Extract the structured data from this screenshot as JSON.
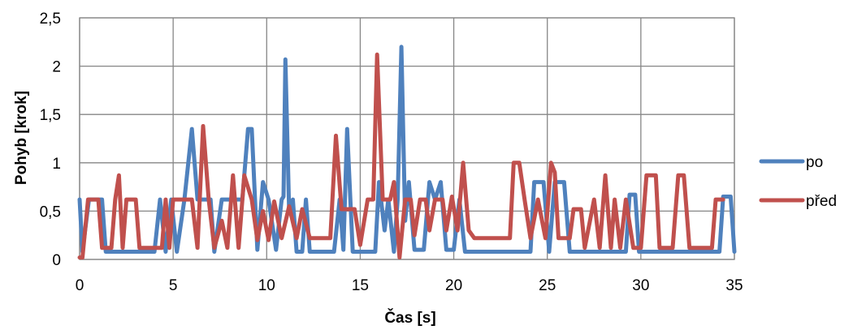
{
  "chart_data": {
    "type": "line",
    "xlabel": "Čas [s]",
    "ylabel": "Pohyb [krok]",
    "xlim": [
      0,
      35
    ],
    "ylim": [
      0,
      2.5
    ],
    "x_ticks": [
      0,
      5,
      10,
      15,
      20,
      25,
      30,
      35
    ],
    "y_ticks": [
      0,
      0.5,
      1,
      1.5,
      2,
      2.5
    ],
    "x_tick_labels": [
      "0",
      "5",
      "10",
      "15",
      "20",
      "25",
      "30",
      "35"
    ],
    "y_tick_labels": [
      "0",
      "0,5",
      "1",
      "1,5",
      "2",
      "2,5"
    ],
    "grid": true,
    "legend_position": "right",
    "series": [
      {
        "name": "po",
        "color": "#4F81BD",
        "points": [
          [
            0,
            0.62
          ],
          [
            0.15,
            0.08
          ],
          [
            0.5,
            0.62
          ],
          [
            1.2,
            0.62
          ],
          [
            1.4,
            0.08
          ],
          [
            4.0,
            0.08
          ],
          [
            4.3,
            0.62
          ],
          [
            4.6,
            0.08
          ],
          [
            4.9,
            0.62
          ],
          [
            5.2,
            0.08
          ],
          [
            5.6,
            0.62
          ],
          [
            6.0,
            1.35
          ],
          [
            6.3,
            0.62
          ],
          [
            7.0,
            0.62
          ],
          [
            7.2,
            0.08
          ],
          [
            7.6,
            0.62
          ],
          [
            8.7,
            0.62
          ],
          [
            9.0,
            1.35
          ],
          [
            9.2,
            1.35
          ],
          [
            9.5,
            0.1
          ],
          [
            9.8,
            0.8
          ],
          [
            10.1,
            0.62
          ],
          [
            10.5,
            0.1
          ],
          [
            10.8,
            0.62
          ],
          [
            10.9,
            0.65
          ],
          [
            11.0,
            2.07
          ],
          [
            11.2,
            0.5
          ],
          [
            11.4,
            0.62
          ],
          [
            11.6,
            0.08
          ],
          [
            11.9,
            0.08
          ],
          [
            12.1,
            0.62
          ],
          [
            12.3,
            0.08
          ],
          [
            13.6,
            0.08
          ],
          [
            13.9,
            0.62
          ],
          [
            14.1,
            0.1
          ],
          [
            14.3,
            1.35
          ],
          [
            14.6,
            0.08
          ],
          [
            15.8,
            0.08
          ],
          [
            16.0,
            0.8
          ],
          [
            16.3,
            0.3
          ],
          [
            16.5,
            0.62
          ],
          [
            16.8,
            0.08
          ],
          [
            17.0,
            0.62
          ],
          [
            17.2,
            2.2
          ],
          [
            17.4,
            0.4
          ],
          [
            17.6,
            0.8
          ],
          [
            17.9,
            0.1
          ],
          [
            18.4,
            0.1
          ],
          [
            18.7,
            0.8
          ],
          [
            19.0,
            0.62
          ],
          [
            19.3,
            0.8
          ],
          [
            19.6,
            0.1
          ],
          [
            20.0,
            0.1
          ],
          [
            20.3,
            0.62
          ],
          [
            20.6,
            0.08
          ],
          [
            24.1,
            0.08
          ],
          [
            24.3,
            0.8
          ],
          [
            24.8,
            0.8
          ],
          [
            25.1,
            0.08
          ],
          [
            25.4,
            0.8
          ],
          [
            25.9,
            0.8
          ],
          [
            26.2,
            0.08
          ],
          [
            29.2,
            0.08
          ],
          [
            29.4,
            0.67
          ],
          [
            29.7,
            0.67
          ],
          [
            29.9,
            0.08
          ],
          [
            34.2,
            0.08
          ],
          [
            34.4,
            0.65
          ],
          [
            34.8,
            0.65
          ],
          [
            35.0,
            0.08
          ]
        ]
      },
      {
        "name": "před",
        "color": "#C0504D",
        "points": [
          [
            0,
            0.02
          ],
          [
            0.15,
            0.02
          ],
          [
            0.45,
            0.62
          ],
          [
            1.0,
            0.62
          ],
          [
            1.2,
            0.12
          ],
          [
            1.7,
            0.12
          ],
          [
            1.9,
            0.62
          ],
          [
            2.1,
            0.87
          ],
          [
            2.3,
            0.12
          ],
          [
            2.5,
            0.62
          ],
          [
            3.0,
            0.62
          ],
          [
            3.2,
            0.12
          ],
          [
            4.4,
            0.12
          ],
          [
            4.6,
            0.62
          ],
          [
            4.8,
            0.12
          ],
          [
            5.0,
            0.62
          ],
          [
            6.0,
            0.62
          ],
          [
            6.3,
            0.12
          ],
          [
            6.6,
            1.38
          ],
          [
            6.9,
            0.62
          ],
          [
            7.2,
            0.12
          ],
          [
            7.6,
            0.4
          ],
          [
            7.9,
            0.12
          ],
          [
            8.2,
            0.87
          ],
          [
            8.5,
            0.12
          ],
          [
            8.8,
            0.87
          ],
          [
            9.2,
            0.62
          ],
          [
            9.5,
            0.2
          ],
          [
            9.8,
            0.5
          ],
          [
            10.1,
            0.2
          ],
          [
            10.4,
            0.6
          ],
          [
            10.8,
            0.22
          ],
          [
            11.2,
            0.55
          ],
          [
            11.6,
            0.22
          ],
          [
            11.9,
            0.52
          ],
          [
            12.3,
            0.22
          ],
          [
            13.4,
            0.22
          ],
          [
            13.7,
            1.28
          ],
          [
            14.0,
            0.52
          ],
          [
            14.7,
            0.52
          ],
          [
            15.0,
            0.15
          ],
          [
            15.4,
            0.62
          ],
          [
            15.7,
            0.62
          ],
          [
            15.9,
            2.12
          ],
          [
            16.2,
            0.62
          ],
          [
            16.6,
            0.62
          ],
          [
            16.8,
            0.8
          ],
          [
            17.1,
            0.02
          ],
          [
            17.4,
            0.62
          ],
          [
            17.7,
            0.62
          ],
          [
            17.9,
            0.25
          ],
          [
            18.2,
            0.62
          ],
          [
            18.5,
            0.62
          ],
          [
            18.7,
            0.3
          ],
          [
            19.0,
            0.62
          ],
          [
            19.4,
            0.62
          ],
          [
            19.6,
            0.3
          ],
          [
            19.9,
            0.65
          ],
          [
            20.2,
            0.3
          ],
          [
            20.5,
            1.0
          ],
          [
            20.8,
            0.3
          ],
          [
            21.1,
            0.22
          ],
          [
            23.0,
            0.22
          ],
          [
            23.2,
            1.0
          ],
          [
            23.5,
            1.0
          ],
          [
            23.8,
            0.6
          ],
          [
            24.1,
            0.22
          ],
          [
            24.5,
            0.62
          ],
          [
            24.9,
            0.22
          ],
          [
            25.2,
            1.0
          ],
          [
            25.4,
            0.9
          ],
          [
            25.6,
            0.22
          ],
          [
            26.2,
            0.22
          ],
          [
            26.4,
            0.52
          ],
          [
            26.8,
            0.52
          ],
          [
            27.0,
            0.12
          ],
          [
            27.5,
            0.62
          ],
          [
            27.8,
            0.12
          ],
          [
            28.1,
            0.87
          ],
          [
            28.4,
            0.12
          ],
          [
            28.6,
            0.62
          ],
          [
            28.9,
            0.12
          ],
          [
            29.2,
            0.62
          ],
          [
            29.6,
            0.12
          ],
          [
            30.0,
            0.12
          ],
          [
            30.3,
            0.87
          ],
          [
            30.8,
            0.87
          ],
          [
            31.0,
            0.12
          ],
          [
            31.7,
            0.12
          ],
          [
            32.0,
            0.87
          ],
          [
            32.3,
            0.87
          ],
          [
            32.6,
            0.12
          ],
          [
            33.8,
            0.12
          ],
          [
            34.0,
            0.62
          ],
          [
            34.4,
            0.62
          ]
        ]
      }
    ]
  }
}
